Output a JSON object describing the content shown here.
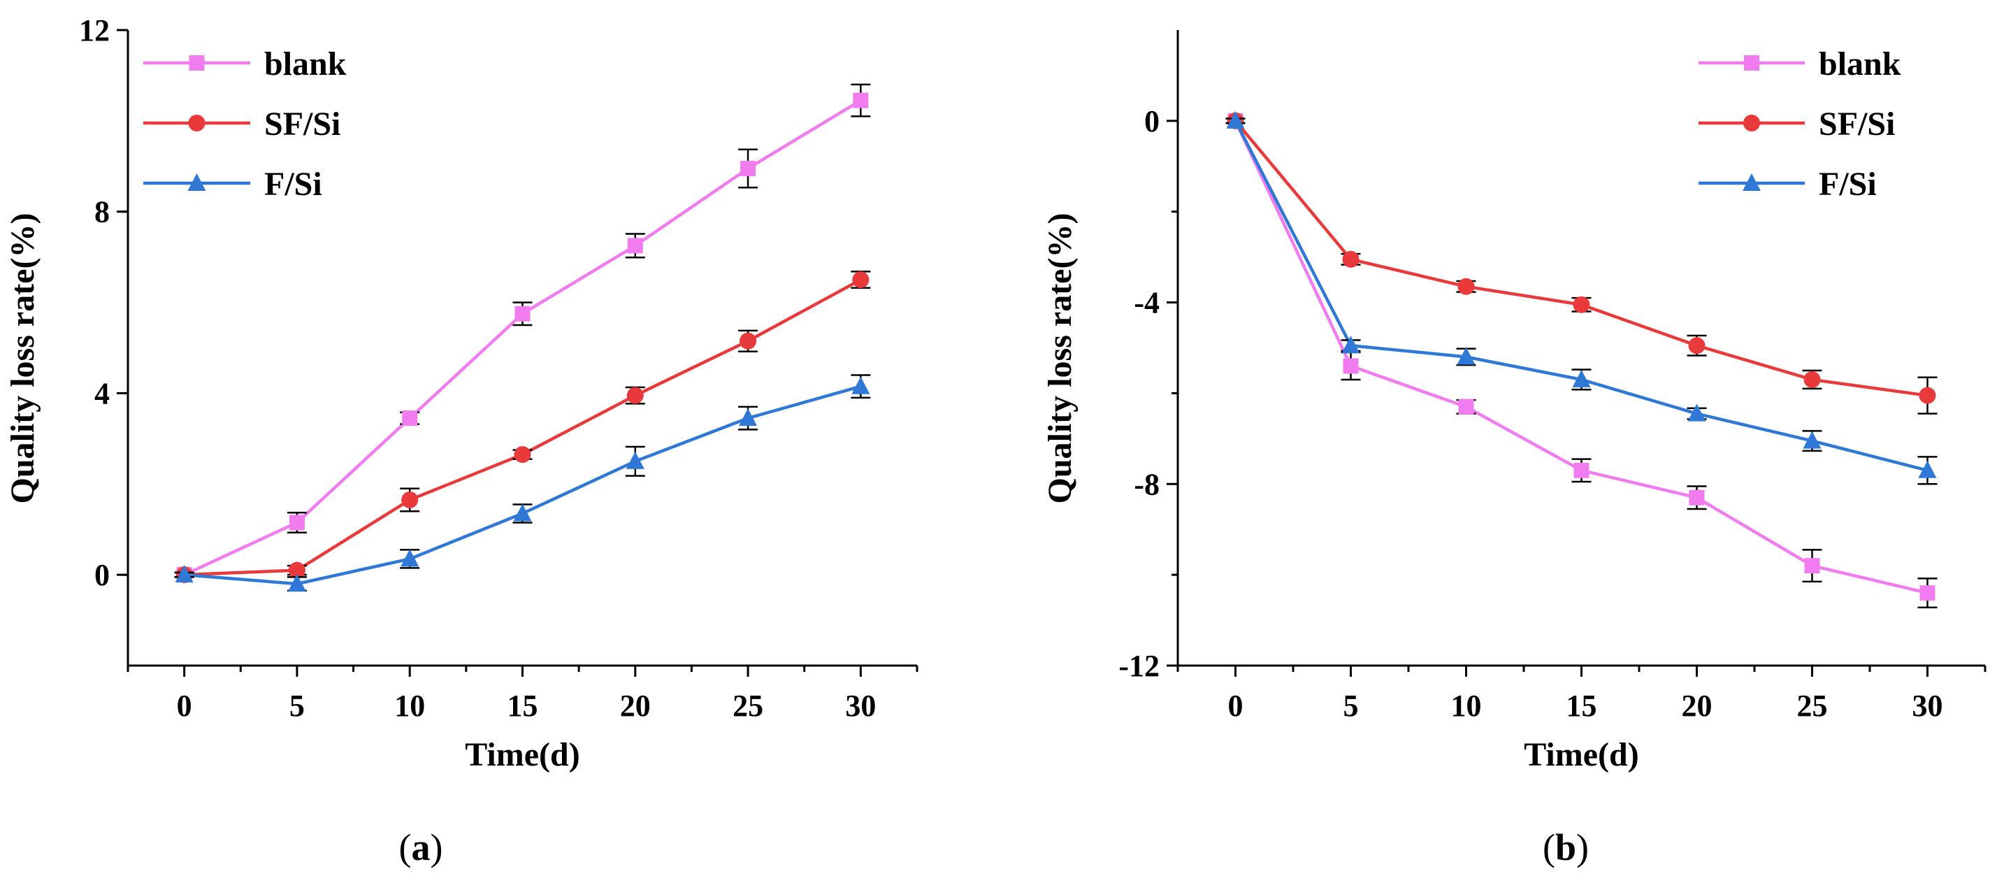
{
  "chart_data": [
    {
      "type": "line",
      "caption": "(a)",
      "caption_parts": {
        "open": "(",
        "letter": "a",
        "close": ")"
      },
      "xlabel": "Time(d)",
      "ylabel": "Quality loss rate(%)",
      "x": [
        0,
        5,
        10,
        15,
        20,
        25,
        30
      ],
      "xlim": [
        -2.5,
        32.5
      ],
      "ylim": [
        -2,
        12
      ],
      "xticks": [
        0,
        5,
        10,
        15,
        20,
        25,
        30
      ],
      "yticks": [
        0,
        4,
        8,
        12
      ],
      "legend_position": "top-left",
      "series": [
        {
          "name": "blank",
          "color": "#f07cf0",
          "marker": "square",
          "values": [
            0,
            1.15,
            3.45,
            5.75,
            7.25,
            8.95,
            10.45
          ],
          "errors": [
            0.05,
            0.22,
            0.13,
            0.25,
            0.26,
            0.42,
            0.35
          ]
        },
        {
          "name": "SF/Si",
          "color": "#e83a3a",
          "marker": "circle",
          "values": [
            0,
            0.1,
            1.65,
            2.65,
            3.95,
            5.15,
            6.5
          ],
          "errors": [
            0.05,
            0.1,
            0.25,
            0.1,
            0.18,
            0.23,
            0.18
          ]
        },
        {
          "name": "F/Si",
          "color": "#2f78d6",
          "marker": "triangle",
          "values": [
            0,
            -0.2,
            0.35,
            1.35,
            2.5,
            3.45,
            4.15
          ],
          "errors": [
            0.05,
            0.15,
            0.2,
            0.2,
            0.32,
            0.25,
            0.25
          ]
        }
      ]
    },
    {
      "type": "line",
      "caption": "(b)",
      "caption_parts": {
        "open": "(",
        "letter": "b",
        "close": ")"
      },
      "xlabel": "Time(d)",
      "ylabel": "Quality loss rate(%)",
      "x": [
        0,
        5,
        10,
        15,
        20,
        25,
        30
      ],
      "xlim": [
        -2.5,
        32.5
      ],
      "ylim": [
        -12,
        2
      ],
      "xticks": [
        0,
        5,
        10,
        15,
        20,
        25,
        30
      ],
      "yticks": [
        -12,
        -8,
        -4,
        0
      ],
      "legend_position": "top-right",
      "series": [
        {
          "name": "blank",
          "color": "#f07cf0",
          "marker": "square",
          "values": [
            0,
            -5.4,
            -6.3,
            -7.7,
            -8.3,
            -9.8,
            -10.4
          ],
          "errors": [
            0.05,
            0.3,
            0.15,
            0.25,
            0.25,
            0.35,
            0.32
          ]
        },
        {
          "name": "SF/Si",
          "color": "#e83a3a",
          "marker": "circle",
          "values": [
            0,
            -3.05,
            -3.65,
            -4.05,
            -4.95,
            -5.7,
            -6.05
          ],
          "errors": [
            0.05,
            0.12,
            0.12,
            0.15,
            0.22,
            0.2,
            0.4
          ]
        },
        {
          "name": "F/Si",
          "color": "#2f78d6",
          "marker": "triangle",
          "values": [
            0,
            -4.95,
            -5.2,
            -5.7,
            -6.45,
            -7.05,
            -7.7
          ],
          "errors": [
            0.05,
            0.12,
            0.18,
            0.22,
            0.12,
            0.22,
            0.3
          ]
        }
      ]
    }
  ]
}
